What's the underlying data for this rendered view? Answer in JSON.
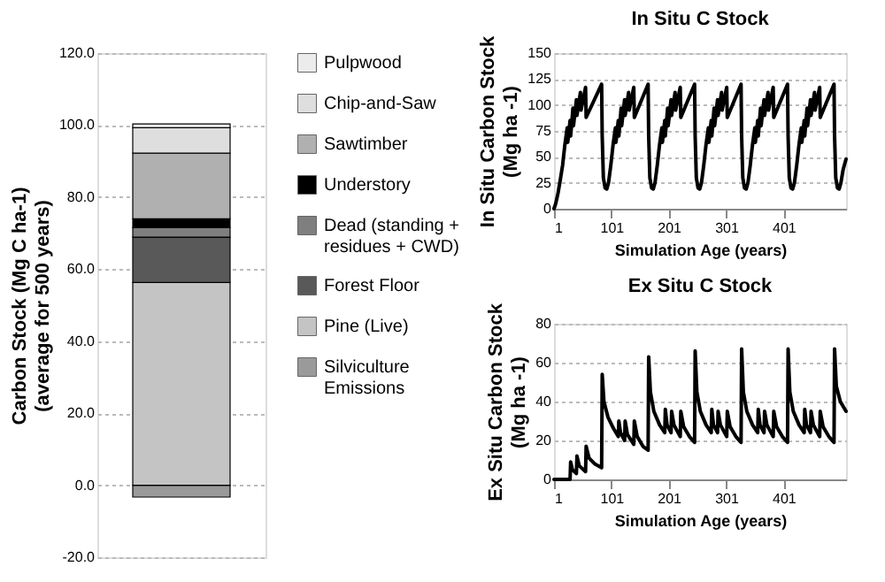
{
  "chart_data": [
    {
      "type": "bar",
      "stacked": true,
      "categories": [
        null
      ],
      "ylabel": "Carbon Stock (Mg C ha-1) (average for 500 years)",
      "ylim": [
        -20,
        120
      ],
      "yticks": [
        {
          "value": -20,
          "label": "-20.0"
        },
        {
          "value": 0,
          "label": "0.0"
        },
        {
          "value": 20,
          "label": "20.0"
        },
        {
          "value": 40,
          "label": "40.0"
        },
        {
          "value": 60,
          "label": "60.0"
        },
        {
          "value": 80,
          "label": "80.0"
        },
        {
          "value": 100,
          "label": "100.0"
        },
        {
          "value": 120,
          "label": "120.0"
        }
      ],
      "grid": "y",
      "legend": "right",
      "tick_labels": "y",
      "series": [
        {
          "name": "Silviculture Emissions",
          "color": "#9a9a9a",
          "values": [
            -3.3
          ]
        },
        {
          "name": "Pine (Live)",
          "color": "#c4c4c4",
          "values": [
            56.3
          ]
        },
        {
          "name": "Forest Floor",
          "color": "#595959",
          "values": [
            12.6
          ]
        },
        {
          "name": "Dead (standing + residues + CWD)",
          "color": "#7f7f7f",
          "values": [
            2.6
          ]
        },
        {
          "name": "Understory",
          "color": "#000000",
          "values": [
            2.5
          ]
        },
        {
          "name": "Sawtimber",
          "color": "#b0b0b0",
          "values": [
            18.2
          ]
        },
        {
          "name": "Chip-and-Saw",
          "color": "#dedede",
          "values": [
            7.1
          ]
        },
        {
          "name": "Pulpwood",
          "color": "#ececec",
          "values": [
            1.0
          ]
        }
      ]
    },
    {
      "type": "line",
      "title": "In Situ C Stock",
      "xlabel": "Simulation Age (years)",
      "ylabel": "In Situ Carbon Stock (Mg ha -1)",
      "xlim": [
        1,
        510
      ],
      "xticks": [
        1,
        101,
        201,
        301,
        401
      ],
      "ylim": [
        0,
        150
      ],
      "yticks": [
        0,
        25,
        50,
        75,
        100,
        125,
        150
      ],
      "grid": "y",
      "marker": "none",
      "line_style": "solid",
      "series": [
        {
          "color": "#000000",
          "x": [
            1,
            4,
            8,
            12,
            16,
            20,
            24,
            25,
            29,
            30,
            34,
            35,
            40,
            41,
            47,
            48,
            56,
            57,
            84,
            85,
            87,
            90,
            93,
            96,
            100,
            104,
            108,
            109,
            113,
            114,
            118,
            119,
            124,
            125,
            131,
            132,
            140,
            141,
            165,
            166,
            168,
            171,
            174,
            177,
            181,
            185,
            189,
            190,
            194,
            195,
            199,
            200,
            205,
            206,
            212,
            213,
            221,
            222,
            246,
            247,
            249,
            252,
            255,
            258,
            262,
            266,
            270,
            271,
            275,
            276,
            280,
            281,
            286,
            287,
            293,
            294,
            302,
            303,
            327,
            328,
            330,
            333,
            336,
            339,
            343,
            347,
            351,
            352,
            356,
            357,
            361,
            362,
            367,
            368,
            374,
            375,
            383,
            384,
            408,
            409,
            411,
            414,
            417,
            420,
            424,
            428,
            432,
            433,
            437,
            438,
            442,
            443,
            448,
            449,
            455,
            456,
            464,
            465,
            489,
            490,
            492,
            495,
            498,
            501,
            505,
            510
          ],
          "values": [
            0,
            5,
            15,
            28,
            42,
            62,
            78,
            64,
            85,
            70,
            97,
            80,
            105,
            90,
            112,
            95,
            117,
            88,
            120,
            70,
            30,
            20,
            19,
            25,
            42,
            62,
            78,
            64,
            85,
            70,
            97,
            80,
            105,
            90,
            112,
            95,
            117,
            88,
            120,
            70,
            30,
            20,
            19,
            25,
            42,
            62,
            78,
            64,
            85,
            70,
            97,
            80,
            105,
            90,
            112,
            95,
            117,
            88,
            120,
            70,
            30,
            20,
            19,
            25,
            42,
            62,
            78,
            64,
            85,
            70,
            97,
            80,
            105,
            90,
            112,
            95,
            117,
            88,
            120,
            70,
            30,
            20,
            19,
            25,
            42,
            62,
            78,
            64,
            85,
            70,
            97,
            80,
            105,
            90,
            112,
            95,
            117,
            88,
            120,
            70,
            30,
            20,
            19,
            25,
            42,
            62,
            78,
            64,
            85,
            70,
            97,
            80,
            105,
            90,
            112,
            95,
            117,
            88,
            120,
            70,
            30,
            20,
            19,
            25,
            38,
            48
          ]
        }
      ]
    },
    {
      "type": "line",
      "title": "Ex Situ C Stock",
      "xlabel": "Simulation Age (years)",
      "ylabel": "Ex Situ Carbon Stock (Mg ha -1)",
      "xlim": [
        1,
        510
      ],
      "xticks": [
        1,
        101,
        201,
        301,
        401
      ],
      "ylim": [
        0,
        80
      ],
      "yticks": [
        0,
        20,
        40,
        60,
        80
      ],
      "grid": "y",
      "marker": "none",
      "line_style": "solid",
      "series": [
        {
          "color": "#000000",
          "x": [
            1,
            29,
            30,
            33,
            40,
            41,
            45,
            56,
            57,
            62,
            72,
            84,
            85,
            88,
            95,
            105,
            113,
            114,
            117,
            124,
            125,
            129,
            140,
            141,
            146,
            156,
            165,
            166,
            169,
            175,
            185,
            194,
            195,
            198,
            205,
            206,
            210,
            221,
            222,
            227,
            237,
            246,
            247,
            250,
            256,
            266,
            275,
            276,
            279,
            286,
            287,
            291,
            302,
            303,
            308,
            318,
            327,
            328,
            331,
            337,
            347,
            356,
            357,
            360,
            367,
            368,
            372,
            383,
            384,
            389,
            399,
            408,
            409,
            412,
            418,
            428,
            437,
            438,
            441,
            448,
            449,
            453,
            464,
            465,
            470,
            480,
            489,
            490,
            493,
            500,
            510
          ],
          "values": [
            0,
            0,
            9,
            5,
            3,
            12,
            7,
            4,
            17,
            11,
            8,
            6,
            54,
            40,
            32,
            26,
            22,
            30,
            24,
            20,
            30,
            23,
            18,
            30,
            22,
            17,
            15,
            63,
            45,
            35,
            28,
            24,
            36,
            28,
            24,
            35,
            28,
            22,
            35,
            27,
            22,
            19,
            66,
            45,
            35,
            28,
            24,
            36,
            28,
            24,
            35,
            28,
            22,
            35,
            27,
            22,
            19,
            67,
            45,
            35,
            28,
            24,
            36,
            28,
            24,
            35,
            28,
            22,
            35,
            27,
            22,
            19,
            67,
            45,
            35,
            28,
            24,
            36,
            28,
            24,
            35,
            28,
            22,
            35,
            27,
            22,
            19,
            67,
            48,
            40,
            35
          ]
        }
      ]
    }
  ]
}
